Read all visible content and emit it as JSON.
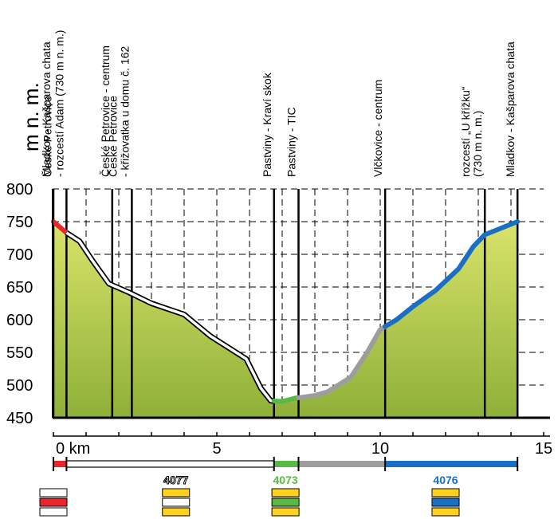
{
  "chart_data": {
    "type": "area",
    "title": "",
    "ylabel": "m n. m.",
    "xlabel": "",
    "x_unit_label": "0 km",
    "xlim": [
      0,
      15
    ],
    "ylim": [
      450,
      800
    ],
    "y_ticks": [
      "800",
      "750",
      "700",
      "650",
      "600",
      "550",
      "500",
      "450"
    ],
    "x_ticks": [
      "0 km",
      "5",
      "10",
      "15"
    ],
    "grid": true,
    "profile": [
      {
        "x": 0.0,
        "y": 750
      },
      {
        "x": 0.4,
        "y": 733
      },
      {
        "x": 0.8,
        "y": 720
      },
      {
        "x": 1.2,
        "y": 690
      },
      {
        "x": 1.7,
        "y": 655
      },
      {
        "x": 2.3,
        "y": 642
      },
      {
        "x": 3.0,
        "y": 625
      },
      {
        "x": 4.0,
        "y": 608
      },
      {
        "x": 4.8,
        "y": 575
      },
      {
        "x": 5.9,
        "y": 540
      },
      {
        "x": 6.35,
        "y": 495
      },
      {
        "x": 6.65,
        "y": 476
      },
      {
        "x": 7.0,
        "y": 475
      },
      {
        "x": 7.4,
        "y": 480
      },
      {
        "x": 8.0,
        "y": 484
      },
      {
        "x": 8.4,
        "y": 490
      },
      {
        "x": 9.1,
        "y": 512
      },
      {
        "x": 9.6,
        "y": 550
      },
      {
        "x": 10.0,
        "y": 585
      },
      {
        "x": 10.5,
        "y": 600
      },
      {
        "x": 11.0,
        "y": 620
      },
      {
        "x": 11.7,
        "y": 645
      },
      {
        "x": 12.4,
        "y": 678
      },
      {
        "x": 12.85,
        "y": 712
      },
      {
        "x": 13.2,
        "y": 730
      },
      {
        "x": 14.2,
        "y": 750
      }
    ],
    "segments": [
      {
        "from": 0.0,
        "to": 0.4,
        "color": "#e8262b",
        "route": ""
      },
      {
        "from": 0.4,
        "to": 6.75,
        "color": "#ffffff",
        "route": "4077"
      },
      {
        "from": 6.75,
        "to": 7.5,
        "color": "#5ab946",
        "route": "4073"
      },
      {
        "from": 7.5,
        "to": 10.15,
        "color": "#9d9d9d",
        "route": ""
      },
      {
        "from": 10.15,
        "to": 14.2,
        "color": "#1a6fc4",
        "route": "4076"
      }
    ],
    "waypoints": [
      {
        "x": 0.0,
        "lines": [
          "Mladkov - Kašparova chata"
        ]
      },
      {
        "x": 0.4,
        "lines": [
          "České Petrovice",
          "- rozcestí Adam (730 m n. m.)"
        ]
      },
      {
        "x": 1.8,
        "lines": [
          "České Petrovice - centrum"
        ]
      },
      {
        "x": 2.4,
        "lines": [
          "České Petrovice",
          "- křižovatka u domu č. 162"
        ]
      },
      {
        "x": 6.75,
        "lines": [
          "Pastviny - Kraví skok"
        ]
      },
      {
        "x": 7.5,
        "lines": [
          "Pastviny - TIC"
        ]
      },
      {
        "x": 10.15,
        "lines": [
          "Vlčkovice - centrum"
        ]
      },
      {
        "x": 13.2,
        "lines": [
          "rozcestí „U křížku“",
          "(730 m n. m.)"
        ]
      },
      {
        "x": 14.2,
        "lines": [
          "Mladkov - Kašparova chata"
        ]
      }
    ],
    "route_numbers": [
      {
        "label": "4077",
        "color": "#ffffff",
        "x": 3.75
      },
      {
        "label": "4073",
        "color": "#5ab946",
        "x": 7.1
      },
      {
        "label": "4076",
        "color": "#1a6fc4",
        "x": 12.0
      }
    ],
    "markers": [
      {
        "x": 0.0,
        "stripes": [
          "#ffffff",
          "#e8262b",
          "#ffffff"
        ]
      },
      {
        "x": 3.75,
        "stripes": [
          "#ffd21f",
          "#ffffff",
          "#ffd21f"
        ]
      },
      {
        "x": 7.1,
        "stripes": [
          "#ffd21f",
          "#5ab946",
          "#ffd21f"
        ]
      },
      {
        "x": 12.0,
        "stripes": [
          "#ffd21f",
          "#1a6fc4",
          "#ffd21f"
        ]
      }
    ],
    "colors": {
      "fill_top": "#d9e36a",
      "fill_bottom": "#8eb038",
      "axis": "#000000"
    }
  }
}
